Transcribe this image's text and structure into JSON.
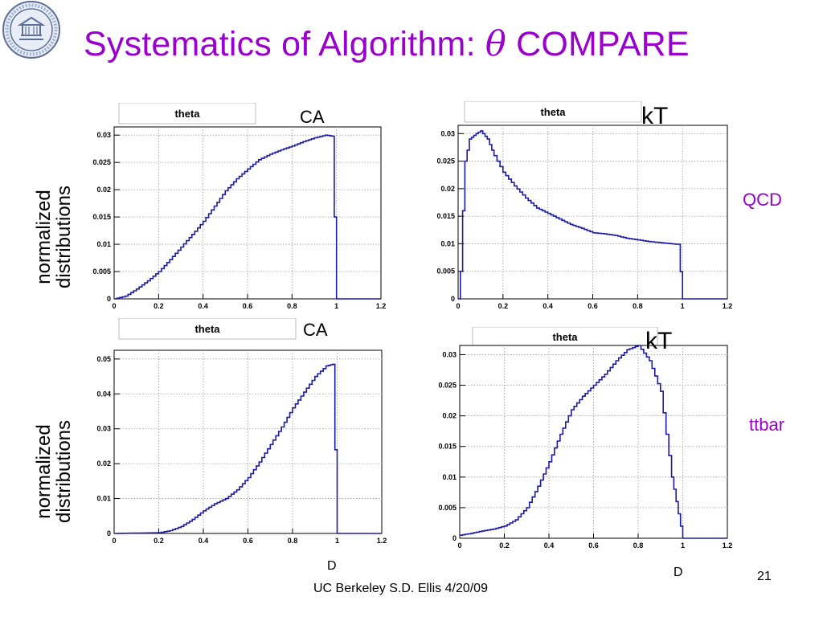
{
  "slide": {
    "title_prefix": "Systematics of Algorithm: ",
    "title_symbol": "θ",
    "title_suffix": "  COMPARE",
    "row_label_line1": "normalized",
    "row_label_line2": "distributions",
    "row_tags": [
      "QCD",
      "ttbar"
    ],
    "axis_var": "D",
    "footer": "UC Berkeley     S.D. Ellis 4/20/09",
    "page_number": "21"
  },
  "chart_data": [
    {
      "type": "line",
      "title": "theta",
      "algorithm": "CA",
      "sample": "QCD",
      "xlim": [
        0,
        1.2
      ],
      "ylim": [
        0,
        0.0315
      ],
      "xticks": [
        "0",
        "0.2",
        "0.4",
        "0.6",
        "0.8",
        "1",
        "1.2"
      ],
      "yticks": [
        "0",
        "0.005",
        "0.01",
        "0.015",
        "0.02",
        "0.025",
        "0.03"
      ],
      "x": [
        0.0,
        0.05,
        0.1,
        0.15,
        0.2,
        0.25,
        0.3,
        0.35,
        0.4,
        0.45,
        0.5,
        0.55,
        0.6,
        0.65,
        0.7,
        0.75,
        0.8,
        0.85,
        0.9,
        0.95,
        0.98,
        0.99,
        1.0,
        1.05,
        1.2
      ],
      "y": [
        0.0,
        0.0005,
        0.0018,
        0.0033,
        0.005,
        0.0072,
        0.0095,
        0.0118,
        0.0142,
        0.017,
        0.0198,
        0.022,
        0.0238,
        0.0255,
        0.0265,
        0.0273,
        0.028,
        0.0288,
        0.0295,
        0.03,
        0.0298,
        0.015,
        0.0,
        0.0,
        0.0
      ]
    },
    {
      "type": "line",
      "title": "theta",
      "algorithm": "kT",
      "sample": "QCD",
      "xlim": [
        0,
        1.2
      ],
      "ylim": [
        0,
        0.0315
      ],
      "xticks": [
        "0",
        "0.2",
        "0.4",
        "0.6",
        "0.8",
        "1",
        "1.2"
      ],
      "yticks": [
        "0",
        "0.005",
        "0.01",
        "0.015",
        "0.02",
        "0.025",
        "0.03"
      ],
      "x": [
        0.0,
        0.01,
        0.02,
        0.03,
        0.05,
        0.08,
        0.1,
        0.13,
        0.16,
        0.2,
        0.25,
        0.3,
        0.35,
        0.4,
        0.45,
        0.5,
        0.55,
        0.6,
        0.65,
        0.7,
        0.75,
        0.8,
        0.85,
        0.9,
        0.95,
        0.98,
        1.0,
        1.05,
        1.2
      ],
      "y": [
        0.0,
        0.005,
        0.016,
        0.025,
        0.029,
        0.03,
        0.0305,
        0.029,
        0.026,
        0.023,
        0.0205,
        0.0183,
        0.0165,
        0.0155,
        0.0145,
        0.0135,
        0.0128,
        0.012,
        0.0118,
        0.0115,
        0.011,
        0.0107,
        0.0104,
        0.0102,
        0.01,
        0.0099,
        0.0,
        0.0,
        0.0
      ]
    },
    {
      "type": "line",
      "title": "theta",
      "algorithm": "CA",
      "sample": "ttbar",
      "xlim": [
        0,
        1.2
      ],
      "ylim": [
        0,
        0.0525
      ],
      "xticks": [
        "0",
        "0.2",
        "0.4",
        "0.6",
        "0.8",
        "1",
        "1.2"
      ],
      "yticks": [
        "0",
        "0.01",
        "0.02",
        "0.03",
        "0.04",
        "0.05"
      ],
      "x": [
        0.0,
        0.2,
        0.25,
        0.3,
        0.35,
        0.4,
        0.45,
        0.5,
        0.55,
        0.6,
        0.65,
        0.7,
        0.75,
        0.8,
        0.85,
        0.9,
        0.95,
        0.98,
        0.99,
        1.0,
        1.05,
        1.2
      ],
      "y": [
        0.0,
        0.0002,
        0.0008,
        0.002,
        0.004,
        0.0065,
        0.0085,
        0.01,
        0.0125,
        0.016,
        0.0205,
        0.0255,
        0.0305,
        0.036,
        0.0405,
        0.045,
        0.048,
        0.0485,
        0.024,
        0.0,
        0.0,
        0.0
      ]
    },
    {
      "type": "line",
      "title": "theta",
      "algorithm": "kT",
      "sample": "ttbar",
      "xlim": [
        0,
        1.2
      ],
      "ylim": [
        0,
        0.0315
      ],
      "xticks": [
        "0",
        "0.2",
        "0.4",
        "0.6",
        "0.8",
        "1",
        "1.2"
      ],
      "yticks": [
        "0",
        "0.005",
        "0.01",
        "0.015",
        "0.02",
        "0.025",
        "0.03"
      ],
      "x": [
        0.0,
        0.05,
        0.1,
        0.15,
        0.2,
        0.25,
        0.3,
        0.35,
        0.4,
        0.45,
        0.5,
        0.55,
        0.6,
        0.65,
        0.7,
        0.75,
        0.8,
        0.85,
        0.9,
        0.95,
        0.98,
        1.0,
        1.05,
        1.2
      ],
      "y": [
        0.0005,
        0.0008,
        0.0012,
        0.0015,
        0.002,
        0.003,
        0.005,
        0.0085,
        0.0125,
        0.017,
        0.021,
        0.0232,
        0.025,
        0.0268,
        0.029,
        0.0308,
        0.0315,
        0.029,
        0.024,
        0.01,
        0.004,
        0.0,
        0.0,
        0.0
      ]
    }
  ]
}
